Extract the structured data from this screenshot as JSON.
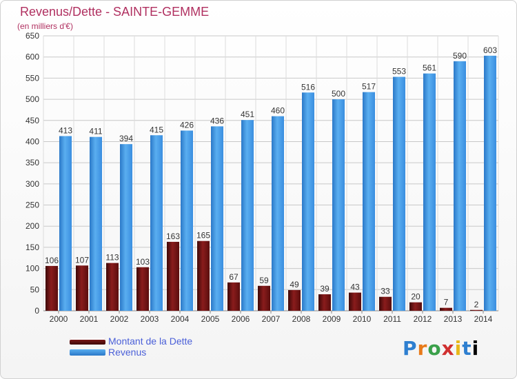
{
  "chart_data": {
    "type": "bar",
    "title": "Revenus/Dette - SAINTE-GEMME",
    "subtitle": "(en milliers d'€)",
    "categories": [
      "2000",
      "2001",
      "2002",
      "2003",
      "2004",
      "2005",
      "2006",
      "2007",
      "2008",
      "2009",
      "2010",
      "2011",
      "2012",
      "2013",
      "2014"
    ],
    "series": [
      {
        "name": "Montant de la Dette",
        "color": "#7a1515",
        "values": [
          106,
          107,
          113,
          103,
          163,
          165,
          67,
          59,
          49,
          39,
          43,
          33,
          20,
          7,
          2
        ]
      },
      {
        "name": "Revenus",
        "color": "#3a8ee0",
        "values": [
          413,
          411,
          394,
          415,
          426,
          436,
          451,
          460,
          516,
          500,
          517,
          553,
          561,
          590,
          603
        ]
      }
    ],
    "ylim": [
      0,
      650
    ],
    "yticks": [
      0,
      50,
      100,
      150,
      200,
      250,
      300,
      350,
      400,
      450,
      500,
      550,
      600,
      650
    ],
    "grid": true,
    "legend": "bottom-left"
  },
  "brand": {
    "letters": [
      "P",
      "r",
      "o",
      "x",
      "i",
      "t",
      "i"
    ]
  }
}
